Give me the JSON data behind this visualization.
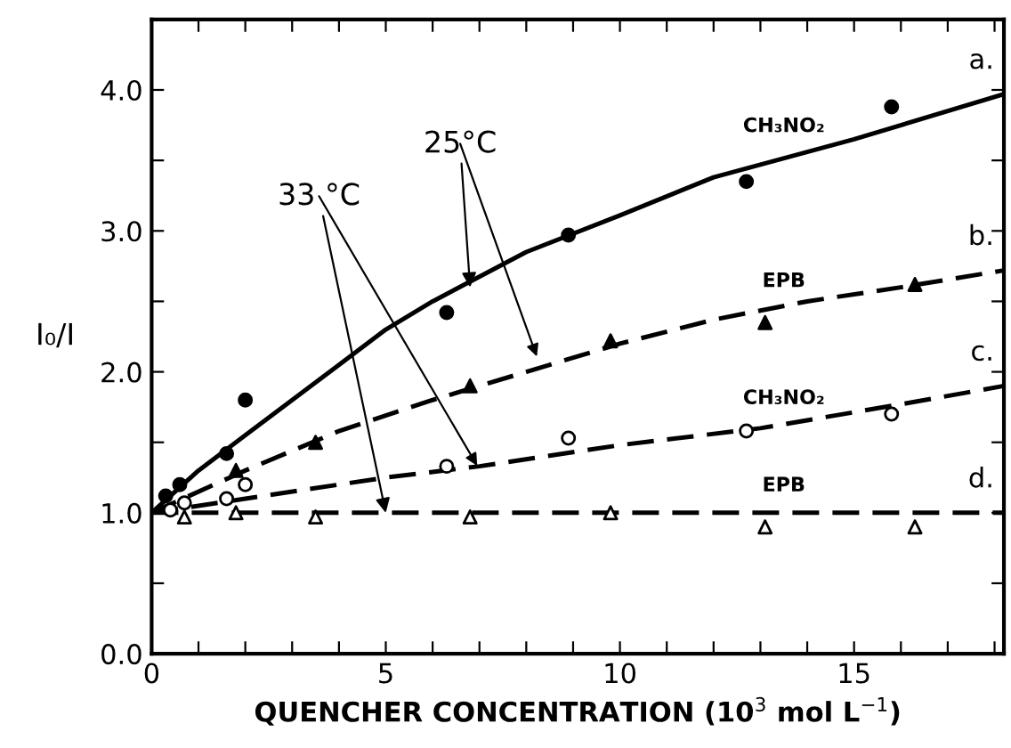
{
  "chart_data": {
    "type": "line",
    "xlabel": "QUENCHER CONCENTRATION (10$^{3}$ mol L$^{−1}$)",
    "ylabel": "I₀/I",
    "xlim": [
      0,
      18.2
    ],
    "ylim": [
      0,
      4.5
    ],
    "xticks": [
      0,
      {
        "value": 1,
        "label": null
      },
      {
        "value": 2,
        "label": null
      },
      {
        "value": 3,
        "label": null
      },
      {
        "value": 4,
        "label": null
      },
      5,
      {
        "value": 6,
        "label": null
      },
      {
        "value": 7,
        "label": null
      },
      {
        "value": 8,
        "label": null
      },
      {
        "value": 9,
        "label": null
      },
      10,
      {
        "value": 11,
        "label": null
      },
      {
        "value": 12,
        "label": null
      },
      {
        "value": 13,
        "label": null
      },
      {
        "value": 14,
        "label": null
      },
      15,
      {
        "value": 16,
        "label": null
      },
      {
        "value": 17,
        "label": null
      },
      {
        "value": 18,
        "label": null
      }
    ],
    "yticks": [
      {
        "value": 0,
        "label": "0.0"
      },
      {
        "value": 0.5,
        "label": null
      },
      {
        "value": 1,
        "label": "1.0"
      },
      {
        "value": 1.5,
        "label": null
      },
      {
        "value": 2,
        "label": "2.0"
      },
      {
        "value": 2.5,
        "label": null
      },
      {
        "value": 3,
        "label": "3.0"
      },
      {
        "value": 3.5,
        "label": null
      },
      {
        "value": 4,
        "label": "4.0"
      }
    ],
    "grid": false,
    "series": [
      {
        "type": "scatter",
        "marker": "circle",
        "color": "#000000",
        "x": [
          0.3,
          0.6,
          1.6,
          2.0,
          6.3,
          8.9,
          12.7,
          15.8
        ],
        "values": [
          1.12,
          1.2,
          1.42,
          1.8,
          2.42,
          2.97,
          3.35,
          3.88
        ]
      },
      {
        "type": "scatter",
        "marker": "triangle",
        "color": "#000000",
        "x": [
          1.8,
          3.5,
          6.8,
          9.8,
          13.1,
          16.3
        ],
        "values": [
          1.3,
          1.5,
          1.9,
          2.22,
          2.35,
          2.62
        ]
      },
      {
        "type": "scatter",
        "marker": "circle",
        "color": "#ffffff",
        "x": [
          0.4,
          0.7,
          1.6,
          2.0,
          6.3,
          8.9,
          12.7,
          15.8
        ],
        "values": [
          1.02,
          1.07,
          1.1,
          1.2,
          1.33,
          1.53,
          1.58,
          1.7
        ]
      },
      {
        "type": "scatter",
        "marker": "triangle",
        "color": "#ffffff",
        "x": [
          0.7,
          1.8,
          3.5,
          6.8,
          9.8,
          13.1,
          16.3
        ],
        "values": [
          0.97,
          1.0,
          0.97,
          0.97,
          1.0,
          0.9,
          0.9
        ]
      },
      {
        "line_style": "solid",
        "color": "#000000",
        "x": [
          0,
          1,
          2,
          3,
          4,
          5,
          6,
          8,
          10,
          12,
          15,
          18.2
        ],
        "values": [
          1.0,
          1.3,
          1.55,
          1.8,
          2.05,
          2.3,
          2.5,
          2.85,
          3.11,
          3.38,
          3.65,
          3.97
        ]
      },
      {
        "line_style": "dashed",
        "color": "#000000",
        "x": [
          0,
          2,
          4,
          6,
          8,
          10,
          12,
          14,
          16,
          18.2
        ],
        "values": [
          1.0,
          1.3,
          1.58,
          1.8,
          2.0,
          2.2,
          2.37,
          2.5,
          2.6,
          2.72
        ]
      },
      {
        "line_style": "dashed",
        "color": "#000000",
        "x": [
          0,
          2,
          5,
          7,
          10,
          13,
          16,
          18.2
        ],
        "values": [
          1.0,
          1.1,
          1.25,
          1.33,
          1.48,
          1.6,
          1.77,
          1.9
        ]
      },
      {
        "line_style": "dashed",
        "color": "#000000",
        "x": [
          0,
          18.2
        ],
        "values": [
          1.0,
          1.0
        ]
      }
    ],
    "annotations": [
      {
        "text": "a.",
        "x": 18.2,
        "y": 3.97
      },
      {
        "text": "b.",
        "x": 18.2,
        "y": 2.72
      },
      {
        "text": "c.",
        "x": 18.2,
        "y": 1.9
      },
      {
        "text": "d.",
        "x": 18.2,
        "y": 1.0
      },
      {
        "text": "CH₃NO₂",
        "x": 13.5,
        "y": 3.55
      },
      {
        "text": "EPB",
        "x": 13.5,
        "y": 2.45
      },
      {
        "text": "CH₃NO₂",
        "x": 13.5,
        "y": 1.62
      },
      {
        "text": "EPB",
        "x": 13.5,
        "y": 1.0
      },
      {
        "text": "25°C",
        "x": 6.8,
        "y": 2.6
      },
      {
        "text": "33 °C",
        "x": 5.0,
        "y": 1.0
      }
    ]
  }
}
